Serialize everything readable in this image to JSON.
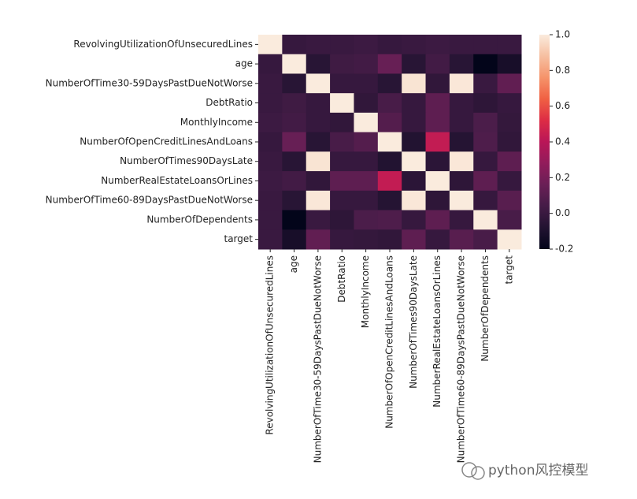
{
  "chart_data": {
    "type": "heatmap",
    "categories": [
      "RevolvingUtilizationOfUnsecuredLines",
      "age",
      "NumberOfTime30-59DaysPastDueNotWorse",
      "DebtRatio",
      "MonthlyIncome",
      "NumberOfOpenCreditLinesAndLoans",
      "NumberOfTimes90DaysLate",
      "NumberRealEstateLoansOrLines",
      "NumberOfTime60-89DaysPastDueNotWorse",
      "NumberOfDependents",
      "target"
    ],
    "values": [
      [
        1,
        -0.01,
        -0.0,
        0.0,
        0.01,
        -0.01,
        -0.0,
        0.01,
        -0.0,
        0.0,
        -0.0
      ],
      [
        -0.01,
        1,
        -0.06,
        0.02,
        0.03,
        0.15,
        -0.06,
        0.03,
        -0.06,
        -0.21,
        -0.12
      ],
      [
        -0.0,
        -0.06,
        1,
        -0.01,
        -0.01,
        -0.06,
        0.98,
        -0.03,
        0.99,
        -0.0,
        0.13
      ],
      [
        0.0,
        0.02,
        -0.01,
        1,
        -0.03,
        0.05,
        -0.01,
        0.12,
        -0.01,
        -0.04,
        -0.01
      ],
      [
        0.01,
        0.03,
        -0.01,
        -0.03,
        1,
        0.09,
        -0.01,
        0.12,
        -0.01,
        0.06,
        -0.02
      ],
      [
        -0.01,
        0.15,
        -0.06,
        0.05,
        0.09,
        1,
        -0.08,
        0.43,
        -0.07,
        0.07,
        -0.03
      ],
      [
        -0.0,
        -0.06,
        0.98,
        -0.01,
        -0.01,
        -0.08,
        1,
        -0.05,
        0.99,
        -0.01,
        0.12
      ],
      [
        0.01,
        0.03,
        -0.03,
        0.12,
        0.12,
        0.43,
        -0.05,
        1,
        -0.04,
        0.12,
        -0.01
      ],
      [
        -0.0,
        -0.06,
        0.99,
        -0.01,
        -0.01,
        -0.07,
        0.99,
        -0.04,
        1,
        -0.01,
        0.1
      ],
      [
        0.0,
        -0.21,
        -0.0,
        -0.04,
        0.06,
        0.07,
        -0.01,
        0.12,
        -0.01,
        1,
        0.05
      ],
      [
        -0.0,
        -0.12,
        0.13,
        -0.01,
        -0.02,
        -0.03,
        0.12,
        -0.01,
        0.1,
        0.05,
        1
      ]
    ],
    "colormap": "rocket",
    "zlim": [
      -0.2,
      1.0
    ],
    "zticks": [
      -0.2,
      {
        "value": 0,
        "label": "0.0"
      },
      0.2,
      0.4,
      0.6,
      0.8,
      {
        "value": 1,
        "label": "1.0"
      }
    ]
  },
  "watermark": "python风控模型"
}
